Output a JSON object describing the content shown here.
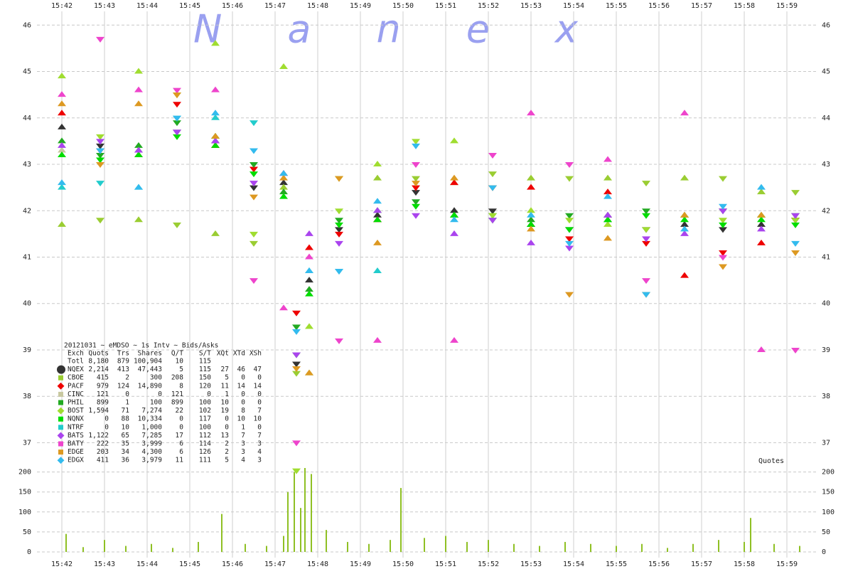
{
  "chart_data": [
    {
      "type": "scatter",
      "watermark": "Nanex",
      "xlim": [
        941.8,
        959.55
      ],
      "xticks": [
        {
          "value": 942,
          "label": "15:42"
        },
        {
          "value": 943,
          "label": "15:43"
        },
        {
          "value": 944,
          "label": "15:44"
        },
        {
          "value": 945,
          "label": "15:45"
        },
        {
          "value": 946,
          "label": "15:46"
        },
        {
          "value": 947,
          "label": "15:47"
        },
        {
          "value": 948,
          "label": "15:48"
        },
        {
          "value": 949,
          "label": "15:49"
        },
        {
          "value": 950,
          "label": "15:50"
        },
        {
          "value": 951,
          "label": "15:51"
        },
        {
          "value": 952,
          "label": "15:52"
        },
        {
          "value": 953,
          "label": "15:53"
        },
        {
          "value": 954,
          "label": "15:54"
        },
        {
          "value": 955,
          "label": "15:55"
        },
        {
          "value": 956,
          "label": "15:56"
        },
        {
          "value": 957,
          "label": "15:57"
        },
        {
          "value": 958,
          "label": "15:58"
        },
        {
          "value": 959,
          "label": "15:59"
        }
      ],
      "ylim": [
        36.7,
        46.25
      ],
      "yticks": [
        37,
        38,
        39,
        40,
        41,
        42,
        43,
        44,
        45,
        46
      ],
      "grid": true,
      "x": [
        942.0,
        942.9,
        943.8,
        944.7,
        945.6,
        946.5,
        947.2,
        947.5,
        947.8,
        948.5,
        949.4,
        950.3,
        951.2,
        952.1,
        953.0,
        953.9,
        954.8,
        955.7,
        956.6,
        957.5,
        958.4,
        959.2
      ],
      "series": [
        {
          "name": "NQEX",
          "color": "#333333",
          "values": [
            43.8,
            43.4,
            43.3,
            43.7,
            43.5,
            42.5,
            42.6,
            38.7,
            40.5,
            41.6,
            41.9,
            42.4,
            42.0,
            42.0,
            41.7,
            41.6,
            41.9,
            41.6,
            41.7,
            41.6,
            41.7,
            41.8
          ]
        },
        {
          "name": "CBOE",
          "color": "#9acd32",
          "values": [
            41.7,
            41.8,
            41.8,
            41.7,
            41.5,
            41.3,
            42.5,
            38.5,
            38.5,
            42.7,
            42.7,
            42.7,
            42.6,
            42.8,
            42.7,
            42.7,
            42.7,
            42.6,
            42.7,
            42.7,
            42.4,
            42.4
          ]
        },
        {
          "name": "PACF",
          "color": "#ee0000",
          "values": [
            44.1,
            43.3,
            43.2,
            44.3,
            43.4,
            42.9,
            42.8,
            39.8,
            41.2,
            41.5,
            41.8,
            42.5,
            42.6,
            42.5,
            42.5,
            41.4,
            42.4,
            41.3,
            40.6,
            41.1,
            41.3,
            41.8
          ]
        },
        {
          "name": "CINC",
          "color": "#c8c8a0",
          "values": [
            43.3,
            null,
            43.3,
            null,
            43.6,
            null,
            null,
            null,
            null,
            null,
            null,
            null,
            null,
            null,
            null,
            null,
            null,
            null,
            null,
            null,
            null,
            null
          ]
        },
        {
          "name": "PHIL",
          "color": "#22aa22",
          "values": [
            43.5,
            43.2,
            43.4,
            43.9,
            43.6,
            43.0,
            42.4,
            39.5,
            40.3,
            41.8,
            42.0,
            42.2,
            41.9,
            41.9,
            41.8,
            41.9,
            41.8,
            42.0,
            41.9,
            42.0,
            41.9,
            41.9
          ]
        },
        {
          "name": "BOST",
          "color": "#a0dd30",
          "values": [
            44.9,
            43.6,
            45.0,
            44.5,
            45.6,
            41.5,
            45.1,
            36.4,
            39.5,
            42.0,
            43.0,
            43.5,
            43.5,
            41.9,
            42.0,
            41.8,
            41.7,
            41.6,
            41.9,
            41.8,
            41.9,
            41.8
          ]
        },
        {
          "name": "NQNX",
          "color": "#00dd00",
          "values": [
            43.2,
            43.1,
            43.2,
            43.6,
            43.4,
            42.8,
            42.3,
            38.9,
            40.2,
            41.7,
            41.8,
            42.1,
            41.9,
            41.8,
            41.7,
            41.6,
            41.8,
            41.9,
            41.8,
            41.7,
            41.8,
            41.7
          ]
        },
        {
          "name": "NTRF",
          "color": "#22cccc",
          "values": [
            42.5,
            42.6,
            42.5,
            44.0,
            44.0,
            43.9,
            null,
            null,
            40.7,
            40.7,
            40.7,
            null,
            null,
            null,
            null,
            null,
            null,
            null,
            null,
            null,
            null,
            null
          ]
        },
        {
          "name": "BATS",
          "color": "#aa44ee",
          "values": [
            43.4,
            43.5,
            43.3,
            43.7,
            43.5,
            42.6,
            42.8,
            38.9,
            41.5,
            41.3,
            42.0,
            41.9,
            41.5,
            41.8,
            41.3,
            41.2,
            41.9,
            41.4,
            41.5,
            42.0,
            41.6,
            41.9
          ]
        },
        {
          "name": "BATY",
          "color": "#ee44cc",
          "values": [
            44.5,
            45.7,
            44.6,
            44.6,
            44.6,
            40.5,
            39.9,
            37.0,
            41.0,
            39.2,
            39.2,
            43.0,
            39.2,
            43.2,
            44.1,
            43.0,
            43.1,
            40.5,
            44.1,
            41.0,
            39.0,
            39.0
          ]
        },
        {
          "name": "EDGE",
          "color": "#dd9922",
          "values": [
            44.3,
            43.0,
            44.3,
            44.5,
            43.6,
            42.3,
            42.7,
            38.6,
            38.5,
            42.7,
            41.3,
            42.6,
            42.7,
            42.5,
            41.6,
            40.2,
            41.4,
            40.2,
            41.9,
            40.8,
            41.9,
            41.1
          ]
        },
        {
          "name": "EDGX",
          "color": "#33bbee",
          "values": [
            42.6,
            43.3,
            42.5,
            44.0,
            44.1,
            43.3,
            42.8,
            39.4,
            40.7,
            40.7,
            42.2,
            43.4,
            41.8,
            42.5,
            41.9,
            41.3,
            42.3,
            40.2,
            41.6,
            42.1,
            42.5,
            41.3
          ]
        }
      ],
      "legend_table": {
        "title": "20121031 ~ eMDSO ~ 1s Intv ~ Bids/Asks",
        "columns": [
          "Exch",
          "Quots",
          "Trs",
          "Shares",
          "Q/T",
          "S/T",
          "XQt",
          "XTd",
          "XSh"
        ],
        "total": {
          "label": "Totl",
          "cells": [
            "8,180",
            "879",
            "100,904",
            "10",
            "115"
          ]
        },
        "rows": [
          [
            "2,214",
            "413",
            "47,443",
            "5",
            "115",
            "27",
            "46",
            "47"
          ],
          [
            "415",
            "2",
            "300",
            "208",
            "150",
            "5",
            "0",
            "0"
          ],
          [
            "979",
            "124",
            "14,890",
            "8",
            "120",
            "11",
            "14",
            "14"
          ],
          [
            "121",
            "0",
            "0",
            "121",
            "0",
            "1",
            "0",
            "0"
          ],
          [
            "899",
            "1",
            "100",
            "899",
            "100",
            "10",
            "0",
            "0"
          ],
          [
            "1,594",
            "71",
            "7,274",
            "22",
            "102",
            "19",
            "8",
            "7"
          ],
          [
            "0",
            "88",
            "10,334",
            "0",
            "117",
            "0",
            "10",
            "10"
          ],
          [
            "0",
            "10",
            "1,000",
            "0",
            "100",
            "0",
            "1",
            "0"
          ],
          [
            "1,122",
            "65",
            "7,285",
            "17",
            "112",
            "13",
            "7",
            "7"
          ],
          [
            "222",
            "35",
            "3,999",
            "6",
            "114",
            "2",
            "3",
            "3"
          ],
          [
            "203",
            "34",
            "4,300",
            "6",
            "126",
            "2",
            "3",
            "4"
          ],
          [
            "411",
            "36",
            "3,979",
            "11",
            "111",
            "5",
            "4",
            "3"
          ]
        ]
      }
    },
    {
      "type": "bar",
      "label": "Quotes",
      "color": "#8fc024",
      "ylim": [
        0,
        210
      ],
      "yticks": [
        0,
        50,
        100,
        150,
        200
      ],
      "grid": true,
      "x": [
        942.1,
        942.5,
        943.0,
        943.5,
        944.1,
        944.6,
        945.2,
        945.75,
        946.3,
        946.8,
        947.2,
        947.3,
        947.45,
        947.6,
        947.7,
        947.85,
        948.2,
        948.7,
        949.2,
        949.7,
        949.95,
        950.5,
        951.0,
        951.5,
        952.0,
        952.6,
        953.2,
        953.8,
        954.4,
        955.0,
        955.6,
        956.2,
        956.8,
        957.4,
        958.0,
        958.15,
        958.7,
        959.3
      ],
      "values": [
        45,
        12,
        30,
        15,
        20,
        10,
        25,
        95,
        20,
        15,
        40,
        150,
        200,
        110,
        210,
        195,
        55,
        25,
        20,
        30,
        160,
        35,
        40,
        25,
        30,
        20,
        15,
        25,
        20,
        15,
        20,
        10,
        20,
        30,
        25,
        85,
        20,
        15
      ]
    }
  ]
}
